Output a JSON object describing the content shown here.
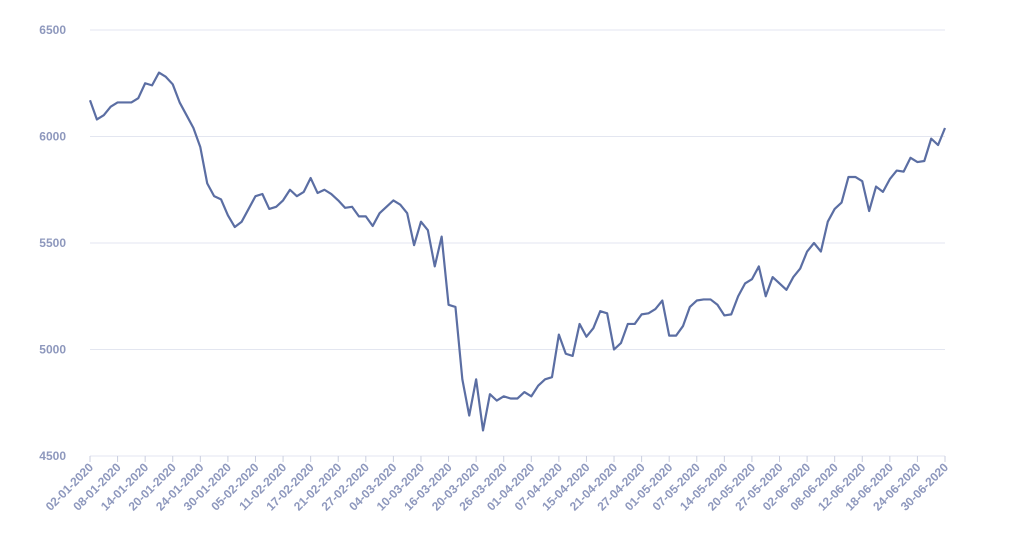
{
  "chart_data": {
    "type": "line",
    "color": "#5b6ea3",
    "grid": true,
    "ylim": [
      4500,
      6500
    ],
    "yticks": [
      4500,
      5000,
      5500,
      6000,
      6500
    ],
    "categories": [
      "02-01-2020",
      null,
      null,
      null,
      "08-01-2020",
      null,
      null,
      null,
      "14-01-2020",
      null,
      null,
      null,
      "20-01-2020",
      null,
      null,
      null,
      "24-01-2020",
      null,
      null,
      null,
      "30-01-2020",
      null,
      null,
      null,
      "05-02-2020",
      null,
      null,
      null,
      "11-02-2020",
      null,
      null,
      null,
      "17-02-2020",
      null,
      null,
      null,
      "21-02-2020",
      null,
      null,
      null,
      "27-02-2020",
      null,
      null,
      null,
      "04-03-2020",
      null,
      null,
      null,
      "10-03-2020",
      null,
      null,
      null,
      "16-03-2020",
      null,
      null,
      null,
      "20-03-2020",
      null,
      null,
      null,
      "26-03-2020",
      null,
      null,
      null,
      "01-04-2020",
      null,
      null,
      null,
      "07-04-2020",
      null,
      null,
      null,
      "15-04-2020",
      null,
      null,
      null,
      "21-04-2020",
      null,
      null,
      null,
      "27-04-2020",
      null,
      null,
      null,
      "01-05-2020",
      null,
      null,
      null,
      "07-05-2020",
      null,
      null,
      null,
      "14-05-2020",
      null,
      null,
      null,
      "20-05-2020",
      null,
      null,
      null,
      "27-05-2020",
      null,
      null,
      null,
      "02-06-2020",
      null,
      null,
      null,
      "08-06-2020",
      null,
      null,
      null,
      "12-06-2020",
      null,
      null,
      null,
      "18-06-2020",
      null,
      null,
      null,
      "24-06-2020",
      null,
      null,
      null,
      "30-06-2020"
    ],
    "values": [
      6170,
      6080,
      6100,
      6140,
      6160,
      6160,
      6160,
      6180,
      6250,
      6240,
      6300,
      6280,
      6245,
      6160,
      6100,
      6040,
      5950,
      5780,
      5720,
      5705,
      5630,
      5575,
      5600,
      5660,
      5720,
      5730,
      5660,
      5670,
      5700,
      5750,
      5720,
      5740,
      5805,
      5735,
      5750,
      5730,
      5700,
      5665,
      5670,
      5625,
      5625,
      5580,
      5640,
      5670,
      5700,
      5680,
      5640,
      5490,
      5600,
      5560,
      5390,
      5530,
      5210,
      5200,
      4860,
      4690,
      4860,
      4620,
      4790,
      4760,
      4780,
      4770,
      4770,
      4800,
      4780,
      4830,
      4860,
      4870,
      5070,
      4980,
      4970,
      5120,
      5060,
      5100,
      5180,
      5170,
      5000,
      5030,
      5120,
      5120,
      5165,
      5170,
      5190,
      5230,
      5065,
      5065,
      5110,
      5200,
      5230,
      5235,
      5235,
      5210,
      5160,
      5165,
      5250,
      5310,
      5330,
      5390,
      5250,
      5340,
      5310,
      5280,
      5340,
      5380,
      5460,
      5500,
      5460,
      5600,
      5660,
      5690,
      5810,
      5810,
      5790,
      5650,
      5765,
      5740,
      5800,
      5840,
      5835,
      5900,
      5880,
      5885,
      5990,
      5960,
      6040
    ]
  }
}
